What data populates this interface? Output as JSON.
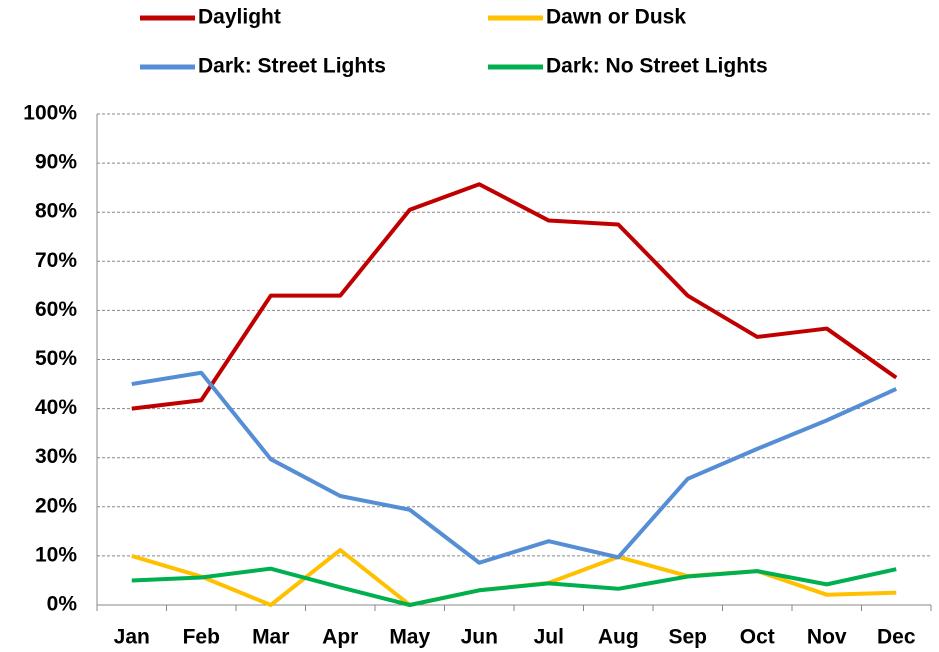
{
  "chart_data": {
    "type": "line",
    "categories": [
      "Jan",
      "Feb",
      "Mar",
      "Apr",
      "May",
      "Jun",
      "Jul",
      "Aug",
      "Sep",
      "Oct",
      "Nov",
      "Dec"
    ],
    "series": [
      {
        "name": "Daylight",
        "color": "#c00000",
        "values": [
          40,
          41.7,
          63,
          63,
          80.5,
          85.7,
          78.3,
          77.5,
          63,
          54.6,
          56.3,
          46.3
        ]
      },
      {
        "name": "Dawn or Dusk",
        "color": "#ffc000",
        "values": [
          10,
          5.8,
          0,
          11.2,
          0,
          3,
          4.5,
          9.8,
          5.9,
          6.9,
          2.1,
          2.5
        ]
      },
      {
        "name": "Dark: Street Lights",
        "color": "#558ed5",
        "values": [
          45,
          47.3,
          29.7,
          22.2,
          19.4,
          8.6,
          13,
          9.7,
          25.7,
          31.8,
          37.6,
          44
        ]
      },
      {
        "name": "Dark: No Street Lights",
        "color": "#00b050",
        "values": [
          5,
          5.6,
          7.4,
          3.6,
          0,
          3,
          4.4,
          3.3,
          5.8,
          6.9,
          4.2,
          7.3
        ]
      }
    ],
    "ylim": [
      0,
      100
    ],
    "yticks": [
      {
        "value": 0,
        "label": "0%"
      },
      {
        "value": 10,
        "label": "10%"
      },
      {
        "value": 20,
        "label": "20%"
      },
      {
        "value": 30,
        "label": "30%"
      },
      {
        "value": 40,
        "label": "40%"
      },
      {
        "value": 50,
        "label": "50%"
      },
      {
        "value": 60,
        "label": "60%"
      },
      {
        "value": 70,
        "label": "70%"
      },
      {
        "value": 80,
        "label": "80%"
      },
      {
        "value": 90,
        "label": "90%"
      },
      {
        "value": 100,
        "label": "100%"
      }
    ],
    "grid": true,
    "legend": "top"
  }
}
